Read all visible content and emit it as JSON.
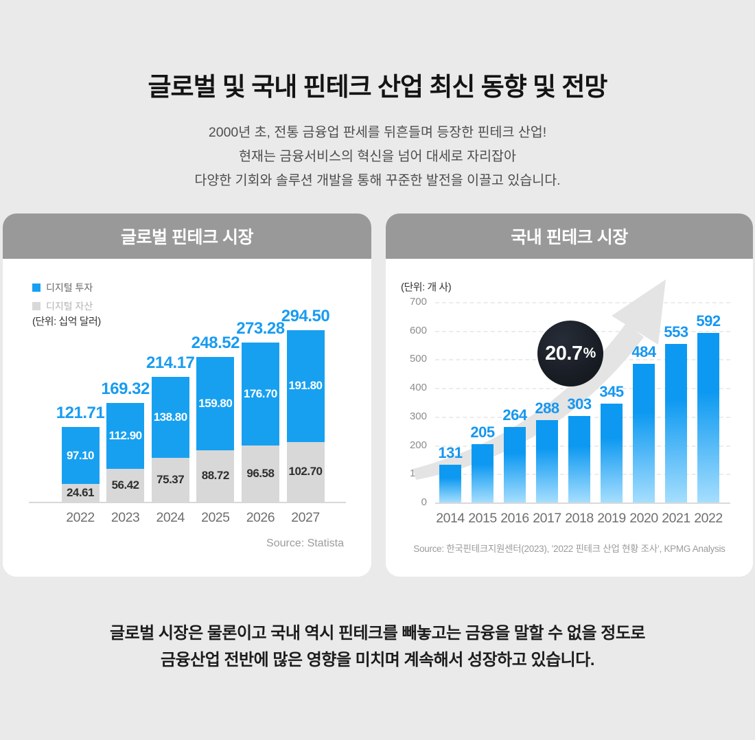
{
  "page": {
    "background": "#eaeaea",
    "title": "글로벌 및 국내 핀테크 산업 최신 동향 및 전망",
    "subtitle_lines": [
      "2000년 초, 전통 금융업 판세를 뒤흔들며 등장한 핀테크 산업!",
      "현재는 금융서비스의 혁신을 넘어 대세로 자리잡아",
      "다양한 기회와 솔루션 개발을 통해 꾸준한 발전을 이끌고 있습니다."
    ],
    "footer_lines": [
      "글로벌 시장은 물론이고 국내 역시 핀테크를 빼놓고는 금융을 말할 수 없을 정도로",
      "금융산업 전반에 많은 영향을 미치며 계속해서 성장하고 있습니다."
    ]
  },
  "global_card": {
    "title": "글로벌 핀테크 시장",
    "unit_label": "(단위: 십억 달러)",
    "source": "Source: Statista",
    "legend": [
      {
        "label": "디지털 투자",
        "color": "#18a0f0"
      },
      {
        "label": "디지털 자산",
        "color": "#d8d8d8"
      }
    ]
  },
  "domestic_card": {
    "title": "국내 핀테크 시장",
    "unit_label": "(단위: 개 사)",
    "source": "Source: 한국핀테크지원센터(2023), ’2022 핀테크 산업 현황 조사’, KPMG Analysis",
    "growth_badge": {
      "number": "20.7",
      "percent": "%"
    }
  },
  "chart_data": [
    {
      "type": "bar",
      "variant": "stacked",
      "title": "글로벌 핀테크 시장",
      "unit": "십억 달러",
      "categories": [
        "2022",
        "2023",
        "2024",
        "2025",
        "2026",
        "2027"
      ],
      "series": [
        {
          "name": "디지털 투자",
          "color": "#18a0f0",
          "values": [
            97.1,
            112.9,
            138.8,
            159.8,
            176.7,
            191.8
          ]
        },
        {
          "name": "디지털 자산",
          "color": "#d8d8d8",
          "values": [
            24.61,
            56.42,
            75.37,
            88.72,
            96.58,
            102.7
          ]
        }
      ],
      "totals": [
        121.71,
        169.32,
        214.17,
        248.52,
        273.28,
        294.5
      ],
      "value_label_decimals": 2,
      "legend_position": "top-left",
      "grid": false,
      "source": "Statista"
    },
    {
      "type": "bar",
      "title": "국내 핀테크 시장",
      "unit": "개 사",
      "categories": [
        "2014",
        "2015",
        "2016",
        "2017",
        "2018",
        "2019",
        "2020",
        "2021",
        "2022"
      ],
      "values": [
        131,
        205,
        264,
        288,
        303,
        345,
        484,
        553,
        592
      ],
      "ylim": [
        0,
        700
      ],
      "yticks": [
        0,
        100,
        200,
        300,
        400,
        500,
        600,
        700
      ],
      "grid": "dashed-horizontal",
      "bar_color_top": "#0d99f1",
      "bar_color_bottom": "#a5defe",
      "annotation": "20.7%",
      "source": "한국핀테크지원센터(2023), ’2022 핀테크 산업 현황 조사’, KPMG Analysis"
    }
  ]
}
